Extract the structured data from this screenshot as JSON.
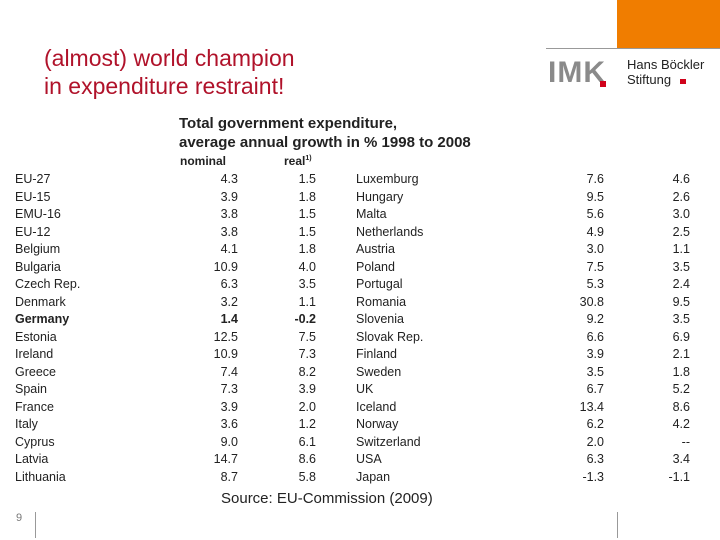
{
  "slide": {
    "title_line1": "(almost) world champion",
    "title_line2": "in expenditure restraint!",
    "page_number": "9",
    "source": "Source: EU-Commission (2009)"
  },
  "logo": {
    "imk_text": "IMK",
    "foundation_line1": "Hans Böckler",
    "foundation_line2": "Stiftung"
  },
  "table": {
    "title_line1": "Total government expenditure,",
    "title_line2": "average annual growth in % 1998 to 2008",
    "header_nominal": "nominal",
    "header_real": "real",
    "header_real_note": "1)",
    "rows": [
      {
        "left_country": "EU-27",
        "left_nominal": "4.3",
        "left_real": "1.5",
        "right_country": "Luxemburg",
        "right_nominal": "7.6",
        "right_real": "4.6"
      },
      {
        "left_country": "EU-15",
        "left_nominal": "3.9",
        "left_real": "1.8",
        "right_country": "Hungary",
        "right_nominal": "9.5",
        "right_real": "2.6"
      },
      {
        "left_country": "EMU-16",
        "left_nominal": "3.8",
        "left_real": "1.5",
        "right_country": "Malta",
        "right_nominal": "5.6",
        "right_real": "3.0"
      },
      {
        "left_country": "EU-12",
        "left_nominal": "3.8",
        "left_real": "1.5",
        "right_country": "Netherlands",
        "right_nominal": "4.9",
        "right_real": "2.5"
      },
      {
        "left_country": "Belgium",
        "left_nominal": "4.1",
        "left_real": "1.8",
        "right_country": "Austria",
        "right_nominal": "3.0",
        "right_real": "1.1"
      },
      {
        "left_country": "Bulgaria",
        "left_nominal": "10.9",
        "left_real": "4.0",
        "right_country": "Poland",
        "right_nominal": "7.5",
        "right_real": "3.5"
      },
      {
        "left_country": "Czech Rep.",
        "left_nominal": "6.3",
        "left_real": "3.5",
        "right_country": "Portugal",
        "right_nominal": "5.3",
        "right_real": "2.4"
      },
      {
        "left_country": "Denmark",
        "left_nominal": "3.2",
        "left_real": "1.1",
        "right_country": "Romania",
        "right_nominal": "30.8",
        "right_real": "9.5"
      },
      {
        "left_country": "Germany",
        "left_nominal": "1.4",
        "left_real": "-0.2",
        "right_country": "Slovenia",
        "right_nominal": "9.2",
        "right_real": "3.5",
        "bold": true
      },
      {
        "left_country": "Estonia",
        "left_nominal": "12.5",
        "left_real": "7.5",
        "right_country": "Slovak Rep.",
        "right_nominal": "6.6",
        "right_real": "6.9"
      },
      {
        "left_country": "Ireland",
        "left_nominal": "10.9",
        "left_real": "7.3",
        "right_country": "Finland",
        "right_nominal": "3.9",
        "right_real": "2.1"
      },
      {
        "left_country": "Greece",
        "left_nominal": "7.4",
        "left_real": "8.2",
        "right_country": "Sweden",
        "right_nominal": "3.5",
        "right_real": "1.8"
      },
      {
        "left_country": "Spain",
        "left_nominal": "7.3",
        "left_real": "3.9",
        "right_country": "UK",
        "right_nominal": "6.7",
        "right_real": "5.2"
      },
      {
        "left_country": "France",
        "left_nominal": "3.9",
        "left_real": "2.0",
        "right_country": "Iceland",
        "right_nominal": "13.4",
        "right_real": "8.6"
      },
      {
        "left_country": "Italy",
        "left_nominal": "3.6",
        "left_real": "1.2",
        "right_country": "Norway",
        "right_nominal": "6.2",
        "right_real": "4.2"
      },
      {
        "left_country": "Cyprus",
        "left_nominal": "9.0",
        "left_real": "6.1",
        "right_country": "Switzerland",
        "right_nominal": "2.0",
        "right_real": "--"
      },
      {
        "left_country": "Latvia",
        "left_nominal": "14.7",
        "left_real": "8.6",
        "right_country": "USA",
        "right_nominal": "6.3",
        "right_real": "3.4"
      },
      {
        "left_country": "Lithuania",
        "left_nominal": "8.7",
        "left_real": "5.8",
        "right_country": "Japan",
        "right_nominal": "-1.3",
        "right_real": "-1.1"
      }
    ]
  }
}
